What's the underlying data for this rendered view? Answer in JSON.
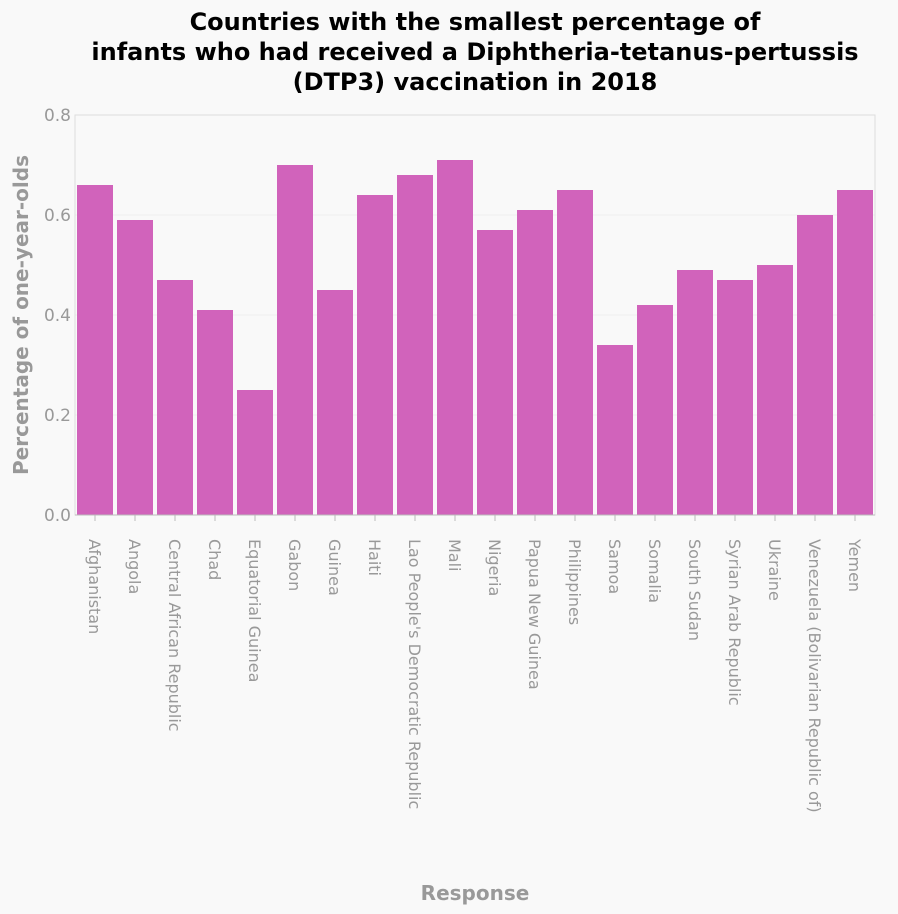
{
  "chart_data": {
    "type": "bar",
    "title_lines": [
      "Countries with the smallest percentage of",
      "infants who had received a Diphtheria-tetanus-pertussis",
      "(DTP3) vaccination in 2018"
    ],
    "xlabel": "Response",
    "ylabel": "Percentage of one-year-olds",
    "ylim": [
      0,
      0.8
    ],
    "yticks": [
      "0.0",
      "0.2",
      "0.4",
      "0.6",
      "0.8"
    ],
    "grid": true,
    "bar_color": "#d163bb",
    "categories": [
      "Afghanistan",
      "Angola",
      "Central African Republic",
      "Chad",
      "Equatorial Guinea",
      "Gabon",
      "Guinea",
      "Haiti",
      "Lao People's Democratic Republic",
      "Mali",
      "Nigeria",
      "Papua New Guinea",
      "Philippines",
      "Samoa",
      "Somalia",
      "South Sudan",
      "Syrian Arab Republic",
      "Ukraine",
      "Venezuela (Bolivarian Republic of)",
      "Yemen"
    ],
    "values": [
      0.66,
      0.59,
      0.47,
      0.41,
      0.25,
      0.7,
      0.45,
      0.64,
      0.68,
      0.71,
      0.57,
      0.61,
      0.65,
      0.34,
      0.42,
      0.49,
      0.47,
      0.5,
      0.6,
      0.65
    ]
  }
}
